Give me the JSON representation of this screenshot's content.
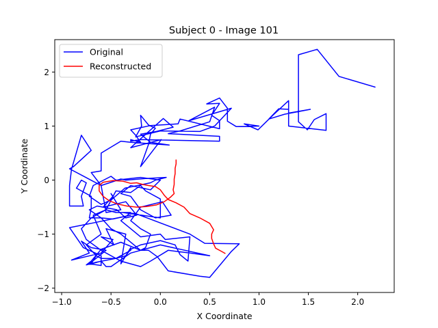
{
  "chart_data": {
    "type": "line",
    "title": "Subject 0 - Image 101",
    "xlabel": "X Coordinate",
    "ylabel": "Y Coordinate",
    "xlim": [
      -1.07,
      2.37
    ],
    "ylim": [
      -2.08,
      2.6
    ],
    "xticks": [
      -1.0,
      -0.5,
      0.0,
      0.5,
      1.0,
      1.5,
      2.0
    ],
    "xtick_labels": [
      "−1.0",
      "−0.5",
      "0.0",
      "0.5",
      "1.0",
      "1.5",
      "2.0"
    ],
    "yticks": [
      -2,
      -1,
      0,
      1,
      2
    ],
    "ytick_labels": [
      "−2",
      "−1",
      "0",
      "1",
      "2"
    ],
    "grid": false,
    "legend_position": "top-left",
    "series": [
      {
        "name": "Original",
        "color": "#0000ff",
        "points": [
          [
            2.18,
            1.72
          ],
          [
            1.81,
            1.92
          ],
          [
            1.59,
            2.42
          ],
          [
            1.4,
            2.32
          ],
          [
            1.4,
            1.08
          ],
          [
            1.49,
            0.93
          ],
          [
            1.56,
            1.12
          ],
          [
            1.68,
            1.23
          ],
          [
            1.68,
            0.92
          ],
          [
            1.3,
            1.0
          ],
          [
            1.3,
            1.31
          ],
          [
            1.2,
            1.32
          ],
          [
            1.1,
            1.13
          ],
          [
            1.26,
            1.22
          ],
          [
            1.52,
            1.31
          ],
          [
            1.3,
            1.24
          ],
          [
            1.3,
            1.47
          ],
          [
            1.14,
            1.2
          ],
          [
            0.99,
            0.93
          ],
          [
            0.85,
            1.04
          ],
          [
            1.0,
            1.0
          ],
          [
            0.77,
            0.99
          ],
          [
            0.68,
            1.09
          ],
          [
            0.68,
            1.33
          ],
          [
            0.6,
            1.52
          ],
          [
            0.47,
            1.41
          ],
          [
            0.6,
            1.42
          ],
          [
            0.52,
            1.2
          ],
          [
            0.6,
            1.1
          ],
          [
            0.6,
            0.95
          ],
          [
            0.2,
            1.13
          ],
          [
            0.18,
            1.04
          ],
          [
            0.0,
            1.02
          ],
          [
            -0.1,
            1.01
          ],
          [
            -0.3,
            0.93
          ],
          [
            -0.25,
            0.83
          ],
          [
            -0.2,
            0.7
          ],
          [
            -0.3,
            0.75
          ],
          [
            -0.3,
            0.72
          ],
          [
            -0.2,
            0.75
          ],
          [
            0.6,
            0.72
          ],
          [
            0.6,
            0.81
          ],
          [
            0.08,
            0.86
          ],
          [
            0.2,
            0.91
          ],
          [
            0.5,
            1.08
          ],
          [
            0.55,
            1.35
          ],
          [
            0.29,
            1.1
          ],
          [
            0.72,
            1.33
          ],
          [
            0.55,
            1.0
          ],
          [
            0.4,
            0.9
          ],
          [
            0.0,
            0.91
          ],
          [
            -0.25,
            0.8
          ],
          [
            -0.19,
            1.0
          ],
          [
            -0.2,
            1.2
          ],
          [
            -0.12,
            1.02
          ],
          [
            -0.05,
            0.96
          ],
          [
            -0.1,
            0.85
          ],
          [
            -0.12,
            0.66
          ],
          [
            -0.2,
            0.25
          ],
          [
            0.01,
            0.75
          ],
          [
            -0.3,
            0.6
          ],
          [
            0.03,
            1.14
          ],
          [
            0.13,
            0.98
          ],
          [
            -0.04,
            0.9
          ],
          [
            -0.2,
            0.85
          ],
          [
            -0.1,
            0.7
          ],
          [
            0.09,
            0.65
          ],
          [
            -0.3,
            0.7
          ],
          [
            -0.4,
            0.72
          ],
          [
            -0.6,
            0.5
          ],
          [
            -0.6,
            0.17
          ],
          [
            -0.7,
            0.14
          ],
          [
            -0.6,
            -0.1
          ],
          [
            -0.55,
            -0.6
          ],
          [
            -0.4,
            -0.55
          ],
          [
            -0.5,
            -0.25
          ],
          [
            -0.48,
            -0.3
          ],
          [
            -0.58,
            -0.5
          ],
          [
            -0.35,
            -0.4
          ],
          [
            -0.24,
            -0.65
          ],
          [
            -0.35,
            -0.7
          ],
          [
            -0.44,
            -0.55
          ],
          [
            -0.64,
            -0.48
          ],
          [
            -0.72,
            -0.55
          ],
          [
            -0.6,
            -0.7
          ],
          [
            -0.5,
            -0.9
          ],
          [
            -0.4,
            -1.0
          ],
          [
            -0.2,
            -1.3
          ],
          [
            -0.15,
            -1.25
          ],
          [
            -0.1,
            -1.0
          ],
          [
            -0.2,
            -0.9
          ],
          [
            -0.3,
            -0.75
          ],
          [
            -0.2,
            -0.5
          ],
          [
            0.02,
            -0.4
          ],
          [
            0.11,
            -0.65
          ],
          [
            -0.05,
            -0.7
          ],
          [
            -0.2,
            -0.55
          ],
          [
            -0.3,
            -0.3
          ],
          [
            -0.4,
            -0.25
          ],
          [
            -0.3,
            -0.1
          ],
          [
            -0.1,
            -0.18
          ],
          [
            0.0,
            0.0
          ],
          [
            -0.2,
            0.05
          ],
          [
            -0.45,
            0.0
          ],
          [
            -0.5,
            0.07
          ],
          [
            -0.68,
            -0.1
          ],
          [
            -0.72,
            -0.3
          ],
          [
            -0.6,
            -0.45
          ],
          [
            -0.5,
            -0.37
          ],
          [
            -0.36,
            -0.15
          ],
          [
            -0.1,
            -0.05
          ],
          [
            -0.05,
            0.0
          ],
          [
            0.06,
            0.05
          ],
          [
            -0.15,
            0.03
          ],
          [
            -0.35,
            0.0
          ],
          [
            -0.4,
            0.02
          ],
          [
            -0.6,
            -0.1
          ],
          [
            -0.92,
            0.21
          ],
          [
            -0.88,
            0.25
          ],
          [
            -0.7,
            0.55
          ],
          [
            -0.8,
            0.83
          ],
          [
            -0.9,
            0.2
          ],
          [
            -0.92,
            -0.1
          ],
          [
            -0.92,
            -0.48
          ],
          [
            -0.78,
            -0.48
          ],
          [
            -0.8,
            -0.3
          ],
          [
            -0.75,
            -0.05
          ],
          [
            -0.8,
            0.0
          ],
          [
            -0.85,
            -0.15
          ],
          [
            -0.7,
            -0.3
          ],
          [
            -0.7,
            -0.52
          ],
          [
            -0.72,
            -0.7
          ],
          [
            -0.6,
            -0.7
          ],
          [
            -0.48,
            -0.72
          ],
          [
            -0.3,
            -0.65
          ],
          [
            -0.7,
            -0.8
          ],
          [
            -0.92,
            -0.88
          ],
          [
            -0.78,
            -1.25
          ],
          [
            -0.6,
            -1.4
          ],
          [
            -0.6,
            -1.58
          ],
          [
            -0.72,
            -1.55
          ],
          [
            -0.55,
            -1.3
          ],
          [
            -0.7,
            -1.25
          ],
          [
            -0.8,
            -1.13
          ],
          [
            -0.72,
            -1.35
          ],
          [
            -0.9,
            -1.48
          ],
          [
            -0.6,
            -1.35
          ],
          [
            -0.48,
            -1.1
          ],
          [
            -0.6,
            -1.05
          ],
          [
            -0.47,
            -1.2
          ],
          [
            -0.55,
            -0.9
          ],
          [
            -0.35,
            -1.0
          ],
          [
            -0.4,
            -1.55
          ],
          [
            -0.3,
            -1.25
          ],
          [
            -0.3,
            -1.3
          ],
          [
            -0.45,
            -1.45
          ],
          [
            -0.65,
            -1.52
          ],
          [
            -0.75,
            -1.57
          ],
          [
            -0.7,
            -1.5
          ],
          [
            -0.6,
            -1.28
          ],
          [
            -0.4,
            -1.15
          ],
          [
            -0.2,
            -1.3
          ],
          [
            -0.12,
            -1.3
          ],
          [
            -0.03,
            -1.42
          ],
          [
            0.08,
            -1.68
          ],
          [
            0.4,
            -1.78
          ],
          [
            0.5,
            -1.8
          ],
          [
            0.72,
            -1.32
          ],
          [
            0.8,
            -1.18
          ],
          [
            0.45,
            -1.17
          ],
          [
            0.3,
            -1.0
          ],
          [
            -0.25,
            -0.62
          ],
          [
            -0.38,
            -0.6
          ],
          [
            0.0,
            -0.7
          ],
          [
            0.0,
            -0.35
          ],
          [
            -0.15,
            -0.2
          ],
          [
            -0.2,
            -0.1
          ],
          [
            -0.3,
            -0.23
          ],
          [
            -0.45,
            -0.2
          ],
          [
            -0.55,
            -0.55
          ],
          [
            -0.68,
            -0.65
          ],
          [
            -0.6,
            -1.0
          ],
          [
            -0.75,
            -1.2
          ],
          [
            -0.65,
            -1.4
          ],
          [
            -0.7,
            -1.55
          ],
          [
            -0.6,
            -1.5
          ],
          [
            -0.55,
            -1.6
          ],
          [
            -0.5,
            -1.6
          ],
          [
            -0.42,
            -1.5
          ],
          [
            -0.3,
            -1.35
          ],
          [
            0.0,
            -1.2
          ],
          [
            0.5,
            -1.4
          ],
          [
            0.3,
            -1.35
          ],
          [
            0.08,
            -1.3
          ],
          [
            -0.1,
            -1.5
          ],
          [
            -0.2,
            -1.6
          ],
          [
            -0.4,
            -1.5
          ],
          [
            -0.6,
            -1.3
          ],
          [
            -0.75,
            -1.1
          ],
          [
            -0.8,
            -0.9
          ],
          [
            -0.7,
            -0.7
          ],
          [
            -0.55,
            -0.55
          ],
          [
            -0.45,
            -0.6
          ],
          [
            -0.3,
            -0.6
          ],
          [
            -0.4,
            -0.75
          ],
          [
            -0.3,
            -0.9
          ],
          [
            -0.2,
            -1.05
          ],
          [
            0.0,
            -1.0
          ],
          [
            0.05,
            -1.1
          ],
          [
            0.3,
            -1.05
          ],
          [
            0.28,
            -1.5
          ],
          [
            0.2,
            -1.38
          ],
          [
            0.15,
            -1.2
          ],
          [
            0.0,
            -1.12
          ],
          [
            -0.2,
            -1.2
          ],
          [
            -0.3,
            -1.28
          ],
          [
            -0.35,
            -1.4
          ],
          [
            -0.45,
            -1.45
          ],
          [
            -0.6,
            -1.45
          ],
          [
            -0.65,
            -1.4
          ]
        ]
      },
      {
        "name": "Reconstructed",
        "color": "#ff0000",
        "points": [
          [
            0.16,
            0.38
          ],
          [
            0.16,
            0.3
          ],
          [
            0.15,
            0.22
          ],
          [
            0.15,
            0.12
          ],
          [
            0.14,
            0.02
          ],
          [
            0.14,
            -0.08
          ],
          [
            0.13,
            -0.18
          ],
          [
            0.14,
            -0.25
          ],
          [
            0.1,
            -0.32
          ],
          [
            0.04,
            -0.4
          ],
          [
            -0.04,
            -0.46
          ],
          [
            -0.14,
            -0.49
          ],
          [
            -0.24,
            -0.5
          ],
          [
            -0.34,
            -0.48
          ],
          [
            -0.44,
            -0.44
          ],
          [
            -0.52,
            -0.38
          ],
          [
            -0.58,
            -0.3
          ],
          [
            -0.62,
            -0.2
          ],
          [
            -0.62,
            -0.1
          ],
          [
            -0.58,
            -0.04
          ],
          [
            -0.48,
            -0.01
          ],
          [
            -0.38,
            -0.02
          ],
          [
            -0.3,
            -0.06
          ],
          [
            -0.24,
            -0.05
          ],
          [
            -0.18,
            -0.08
          ],
          [
            -0.12,
            -0.1
          ],
          [
            -0.05,
            -0.12
          ],
          [
            0.0,
            -0.18
          ],
          [
            0.04,
            -0.28
          ],
          [
            0.08,
            -0.36
          ],
          [
            0.16,
            -0.42
          ],
          [
            0.24,
            -0.5
          ],
          [
            0.3,
            -0.62
          ],
          [
            0.4,
            -0.7
          ],
          [
            0.5,
            -0.8
          ],
          [
            0.54,
            -0.92
          ],
          [
            0.52,
            -1.0
          ],
          [
            0.52,
            -1.08
          ],
          [
            0.54,
            -1.18
          ],
          [
            0.56,
            -1.26
          ],
          [
            0.62,
            -1.32
          ],
          [
            0.66,
            -1.36
          ]
        ]
      }
    ]
  }
}
